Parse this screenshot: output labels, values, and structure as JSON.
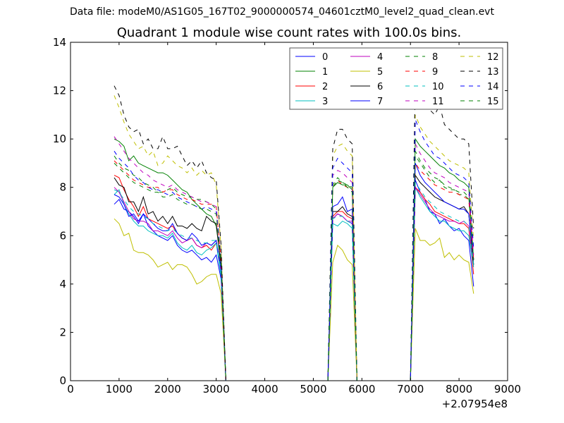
{
  "suptitle": "Data file: modeM0/AS1G05_167T02_9000000574_04601cztM0_level2_quad_clean.evt",
  "chart_data": {
    "type": "line",
    "title": "Quadrant 1 module wise count rates with 100.0s bins.",
    "x_offset_label": "+2.07954e8",
    "xlim": [
      0,
      9000
    ],
    "ylim": [
      0,
      14
    ],
    "xticks": [
      0,
      1000,
      2000,
      3000,
      4000,
      5000,
      6000,
      7000,
      8000,
      9000
    ],
    "yticks": [
      0,
      2,
      4,
      6,
      8,
      10,
      12,
      14
    ],
    "grid": false,
    "legend": {
      "placement": "top-right",
      "columns": 4
    },
    "segments": [
      {
        "x": [
          900,
          1000,
          1100,
          1200,
          1300,
          1400,
          1500,
          1600,
          1700,
          1800,
          1900,
          2000,
          2100,
          2200,
          2300,
          2400,
          2500,
          2600,
          2700,
          2800,
          2900,
          3000,
          3100,
          3200
        ]
      },
      {
        "x": [
          5300,
          5400,
          5500,
          5600,
          5700,
          5800,
          5900
        ]
      },
      {
        "x": [
          7000,
          7100,
          7200,
          7300,
          7400,
          7500,
          7600,
          7700,
          7800,
          7900,
          8000,
          8100,
          8200,
          8300
        ]
      }
    ],
    "zero_span": [
      3200,
      7000
    ],
    "series": [
      {
        "name": "0",
        "color": "#0000ff",
        "dash": false,
        "values": [
          [
            7.3,
            7.5,
            7.1,
            7.0,
            6.8,
            6.5,
            6.9,
            6.4,
            6.2,
            6.0,
            5.9,
            5.8,
            6.0,
            5.6,
            5.4,
            5.3,
            5.4,
            5.2,
            5.0,
            5.1,
            4.9,
            5.2,
            4.2,
            0
          ],
          [
            0,
            6.7,
            6.9,
            6.8,
            6.6,
            6.5,
            0
          ],
          [
            0,
            8.3,
            7.8,
            7.5,
            7.0,
            6.9,
            6.5,
            6.7,
            6.4,
            6.2,
            6.3,
            6.0,
            5.8,
            3.9
          ]
        ]
      },
      {
        "name": "1",
        "color": "#008000",
        "dash": false,
        "values": [
          [
            10.0,
            9.9,
            9.7,
            9.1,
            9.3,
            9.0,
            8.9,
            8.8,
            8.7,
            8.6,
            8.6,
            8.5,
            8.3,
            8.1,
            7.9,
            7.8,
            7.5,
            7.3,
            7.1,
            6.9,
            6.8,
            6.4,
            4.8,
            0
          ],
          [
            0,
            8.0,
            8.2,
            8.1,
            8.1,
            7.9,
            0
          ],
          [
            0,
            10.0,
            9.7,
            9.5,
            9.3,
            9.1,
            8.9,
            8.8,
            8.6,
            8.5,
            8.3,
            8.2,
            8.0,
            5.0
          ]
        ]
      },
      {
        "name": "2",
        "color": "#ff0000",
        "dash": false,
        "values": [
          [
            8.5,
            8.4,
            7.9,
            7.5,
            7.2,
            6.8,
            7.2,
            6.7,
            6.6,
            6.5,
            6.4,
            6.3,
            6.4,
            6.1,
            5.9,
            5.8,
            5.9,
            5.6,
            5.5,
            5.6,
            5.4,
            5.7,
            4.5,
            0
          ],
          [
            0,
            6.8,
            7.0,
            7.0,
            6.8,
            6.7,
            0
          ],
          [
            0,
            8.0,
            7.8,
            7.5,
            7.3,
            7.0,
            6.9,
            6.8,
            6.7,
            6.6,
            6.5,
            6.5,
            6.3,
            4.4
          ]
        ]
      },
      {
        "name": "3",
        "color": "#00bfbf",
        "dash": false,
        "values": [
          [
            7.7,
            7.9,
            7.3,
            6.9,
            6.6,
            6.4,
            6.4,
            6.2,
            6.1,
            6.0,
            6.0,
            5.9,
            6.1,
            5.7,
            5.5,
            5.4,
            5.6,
            5.3,
            5.2,
            5.4,
            5.5,
            5.7,
            4.3,
            0
          ],
          [
            0,
            6.5,
            6.4,
            6.6,
            6.5,
            6.3,
            0
          ],
          [
            0,
            8.0,
            7.6,
            7.3,
            7.0,
            6.8,
            6.6,
            6.6,
            6.4,
            6.3,
            6.2,
            6.2,
            6.0,
            4.7
          ]
        ]
      },
      {
        "name": "4",
        "color": "#bf00bf",
        "dash": false,
        "values": [
          [
            8.0,
            7.8,
            7.4,
            7.0,
            6.7,
            6.6,
            6.6,
            6.5,
            6.2,
            6.2,
            6.1,
            6.0,
            6.2,
            5.9,
            5.7,
            5.8,
            5.9,
            5.6,
            5.5,
            5.7,
            5.6,
            5.8,
            4.5,
            0
          ],
          [
            0,
            6.7,
            6.9,
            6.8,
            6.6,
            6.6,
            0
          ],
          [
            0,
            8.0,
            7.7,
            7.4,
            7.1,
            6.9,
            6.8,
            6.7,
            6.6,
            6.6,
            6.5,
            6.6,
            6.4,
            4.8
          ]
        ]
      },
      {
        "name": "5",
        "color": "#bfbf00",
        "dash": false,
        "values": [
          [
            6.7,
            6.5,
            6.0,
            6.1,
            5.4,
            5.3,
            5.3,
            5.2,
            5.0,
            4.7,
            4.8,
            4.9,
            4.6,
            4.8,
            4.8,
            4.7,
            4.4,
            4.0,
            4.1,
            4.3,
            4.4,
            4.4,
            3.6,
            0
          ],
          [
            0,
            4.9,
            5.6,
            5.4,
            5.0,
            4.8,
            0
          ],
          [
            0,
            6.3,
            5.8,
            5.8,
            5.6,
            5.7,
            5.9,
            5.1,
            5.3,
            5.0,
            5.2,
            5.0,
            4.9,
            3.6
          ]
        ]
      },
      {
        "name": "6",
        "color": "#000000",
        "dash": false,
        "values": [
          [
            8.4,
            8.1,
            8.0,
            7.4,
            7.4,
            7.0,
            7.6,
            6.9,
            7.0,
            6.6,
            6.8,
            6.5,
            6.8,
            6.4,
            6.4,
            6.3,
            6.5,
            6.3,
            6.2,
            6.8,
            6.6,
            6.5,
            4.7,
            0
          ],
          [
            0,
            7.0,
            7.0,
            7.2,
            6.9,
            6.8,
            0
          ],
          [
            0,
            8.5,
            8.2,
            8.0,
            7.8,
            7.6,
            7.5,
            7.4,
            7.3,
            7.2,
            7.1,
            7.2,
            6.9,
            4.8
          ]
        ]
      },
      {
        "name": "7",
        "color": "#0000ff",
        "dash": false,
        "values": [
          [
            7.7,
            7.6,
            7.3,
            6.8,
            6.9,
            6.6,
            6.9,
            6.7,
            6.5,
            6.3,
            6.2,
            6.2,
            6.5,
            6.1,
            5.9,
            5.8,
            6.1,
            5.9,
            5.6,
            5.7,
            5.6,
            5.8,
            4.6,
            0
          ],
          [
            0,
            7.2,
            7.3,
            7.6,
            7.0,
            7.1,
            0
          ],
          [
            0,
            9.0,
            8.5,
            8.2,
            8.0,
            7.8,
            7.6,
            7.4,
            7.3,
            7.2,
            7.1,
            7.1,
            6.9,
            5.0
          ]
        ]
      },
      {
        "name": "8",
        "color": "#008000",
        "dash": true,
        "values": [
          [
            9.3,
            9.0,
            8.8,
            8.7,
            8.5,
            8.4,
            8.2,
            8.1,
            8.0,
            7.8,
            7.8,
            7.9,
            8.0,
            7.8,
            7.7,
            7.6,
            7.6,
            7.5,
            7.5,
            7.4,
            7.3,
            7.1,
            5.0,
            0
          ],
          [
            0,
            8.1,
            8.4,
            8.2,
            8.1,
            8.0,
            0
          ],
          [
            0,
            9.3,
            9.0,
            8.7,
            8.4,
            8.2,
            8.3,
            8.0,
            7.9,
            7.9,
            7.7,
            7.7,
            7.5,
            5.0
          ]
        ]
      },
      {
        "name": "9",
        "color": "#ff0000",
        "dash": true,
        "values": [
          [
            9.1,
            8.9,
            8.7,
            8.5,
            8.3,
            8.2,
            8.1,
            8.0,
            8.0,
            8.0,
            7.8,
            7.9,
            7.9,
            7.7,
            7.6,
            7.5,
            7.5,
            7.4,
            7.3,
            7.3,
            7.3,
            7.2,
            5.0,
            0
          ],
          [
            0,
            8.0,
            8.3,
            8.1,
            8.0,
            7.9,
            0
          ],
          [
            0,
            9.0,
            8.7,
            8.5,
            8.3,
            8.1,
            8.0,
            7.9,
            7.8,
            7.8,
            7.7,
            7.6,
            7.5,
            5.0
          ]
        ]
      },
      {
        "name": "10",
        "color": "#00bfbf",
        "dash": true,
        "values": [
          [
            7.9,
            7.8,
            7.5,
            7.2,
            7.0,
            6.9,
            6.8,
            6.7,
            6.5,
            6.4,
            6.3,
            6.2,
            6.3,
            6.1,
            6.0,
            5.9,
            5.9,
            5.8,
            5.7,
            5.7,
            5.8,
            5.8,
            4.5,
            0
          ],
          [
            0,
            6.7,
            6.8,
            6.8,
            6.6,
            6.5,
            0
          ],
          [
            0,
            8.2,
            7.9,
            7.6,
            7.4,
            7.2,
            7.0,
            6.9,
            6.8,
            6.7,
            6.6,
            6.6,
            6.4,
            4.8
          ]
        ]
      },
      {
        "name": "11",
        "color": "#bf00bf",
        "dash": true,
        "values": [
          [
            10.1,
            9.8,
            9.5,
            9.2,
            9.0,
            8.8,
            8.6,
            8.5,
            8.3,
            8.2,
            8.1,
            8.0,
            8.1,
            7.9,
            7.8,
            7.7,
            7.6,
            7.5,
            7.4,
            7.4,
            7.3,
            7.2,
            5.0,
            0
          ],
          [
            0,
            8.5,
            8.7,
            8.6,
            8.4,
            8.2,
            0
          ],
          [
            0,
            9.8,
            9.4,
            9.1,
            8.8,
            8.6,
            8.5,
            8.4,
            8.2,
            8.1,
            8.0,
            7.9,
            7.8,
            5.2
          ]
        ]
      },
      {
        "name": "12",
        "color": "#bfbf00",
        "dash": true,
        "values": [
          [
            11.8,
            11.3,
            10.7,
            10.2,
            9.9,
            9.6,
            9.7,
            9.3,
            9.5,
            8.9,
            9.0,
            9.3,
            9.1,
            8.9,
            8.8,
            8.6,
            8.8,
            8.5,
            8.7,
            8.5,
            8.6,
            8.1,
            5.5,
            0
          ],
          [
            0,
            9.3,
            9.7,
            9.8,
            9.5,
            9.3,
            0
          ],
          [
            0,
            11.0,
            10.5,
            10.2,
            9.9,
            9.7,
            9.5,
            9.3,
            9.1,
            9.0,
            8.9,
            8.8,
            8.6,
            5.8
          ]
        ]
      },
      {
        "name": "13",
        "color": "#000000",
        "dash": true,
        "values": [
          [
            12.2,
            11.8,
            11.0,
            10.5,
            10.3,
            10.4,
            9.8,
            10.0,
            9.6,
            9.6,
            10.1,
            9.6,
            9.6,
            9.7,
            9.3,
            8.9,
            9.1,
            8.8,
            9.1,
            8.6,
            8.4,
            8.3,
            5.6,
            0
          ],
          [
            0,
            9.6,
            10.4,
            10.4,
            10.0,
            9.8,
            0
          ],
          [
            0,
            12.5,
            11.9,
            11.6,
            11.2,
            11.0,
            11.4,
            10.6,
            10.4,
            10.2,
            10.0,
            10.0,
            9.8,
            6.3
          ]
        ]
      },
      {
        "name": "14",
        "color": "#0000ff",
        "dash": true,
        "values": [
          [
            9.5,
            9.2,
            9.0,
            8.8,
            8.5,
            8.3,
            8.2,
            8.0,
            7.9,
            7.9,
            7.8,
            7.7,
            7.8,
            7.6,
            7.5,
            7.4,
            7.3,
            7.2,
            7.1,
            7.2,
            7.1,
            7.0,
            5.0,
            0
          ],
          [
            0,
            8.8,
            9.2,
            9.0,
            8.8,
            8.6,
            0
          ],
          [
            0,
            10.8,
            10.3,
            9.9,
            9.6,
            9.3,
            9.2,
            9.0,
            8.8,
            8.6,
            8.5,
            8.4,
            8.2,
            5.5
          ]
        ]
      },
      {
        "name": "15",
        "color": "#008000",
        "dash": true,
        "values": [
          [
            9.0,
            8.8,
            8.6,
            8.4,
            8.2,
            8.1,
            8.0,
            7.9,
            7.8,
            7.8,
            7.6,
            7.6,
            7.7,
            7.5,
            7.4,
            7.3,
            7.3,
            7.2,
            7.1,
            7.1,
            7.0,
            6.9,
            4.9,
            0
          ],
          [
            0,
            8.0,
            8.3,
            8.2,
            8.0,
            7.8,
            0
          ],
          [
            0,
            9.5,
            9.1,
            8.8,
            8.6,
            8.4,
            8.3,
            8.1,
            8.0,
            7.9,
            7.8,
            7.8,
            7.6,
            5.0
          ]
        ]
      }
    ]
  }
}
